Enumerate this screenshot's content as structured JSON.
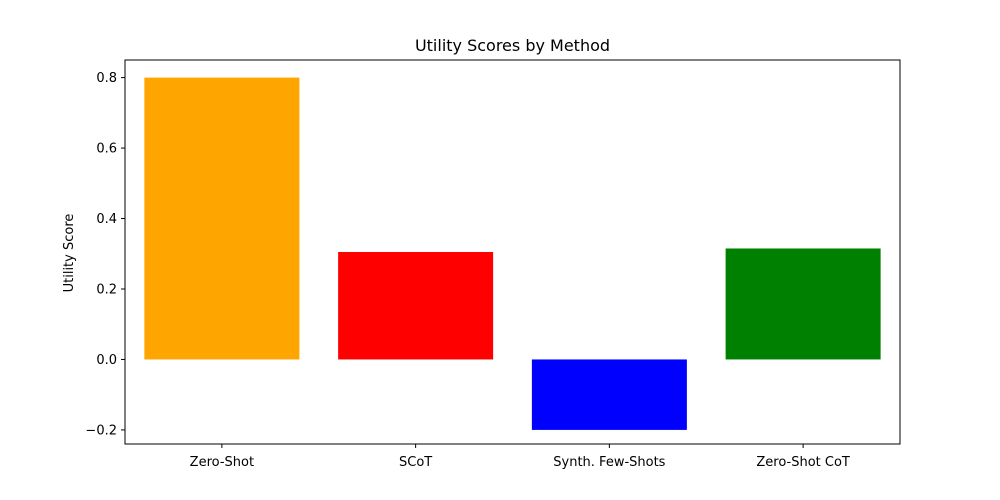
{
  "chart_data": {
    "type": "bar",
    "title": "Utility Scores by Method",
    "xlabel": "",
    "ylabel": "Utility Score",
    "categories": [
      "Zero-Shot",
      "SCoT",
      "Synth. Few-Shots",
      "Zero-Shot CoT"
    ],
    "values": [
      0.8,
      0.305,
      -0.2,
      0.315
    ],
    "colors": [
      "#ffa500",
      "#ff0000",
      "#0000ff",
      "#008000"
    ],
    "ylim": [
      -0.24,
      0.85
    ],
    "yticks": [
      -0.2,
      0.0,
      0.2,
      0.4,
      0.6,
      0.8
    ],
    "ytick_labels": [
      "−0.2",
      "0.0",
      "0.2",
      "0.4",
      "0.6",
      "0.8"
    ],
    "grid": false,
    "legend": "none"
  }
}
